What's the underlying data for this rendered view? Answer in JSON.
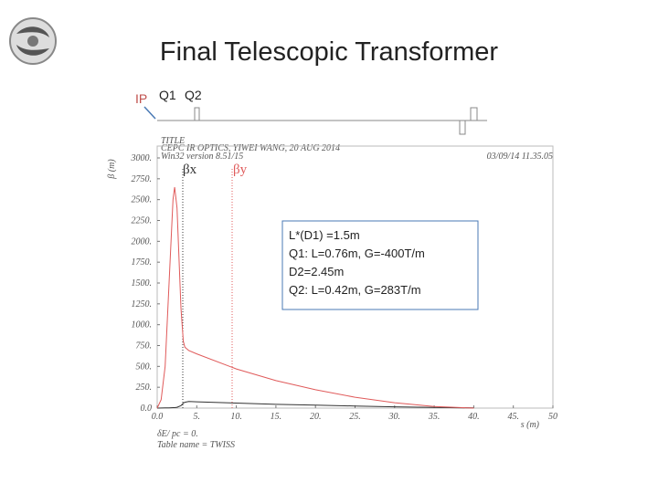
{
  "chart_data": {
    "type": "line",
    "title": "Final Telescopic Transformer",
    "beamline_labels": [
      "IP",
      "Q1",
      "Q2"
    ],
    "header": [
      "TITLE",
      "CEPC IR OPTICS, YIWEI WANG, 20 AUG 2014",
      "Win32 version 8.51/15",
      "03/09/14  11.35.05"
    ],
    "footer": [
      "δE/ pc = 0.",
      "Table name = TWISS"
    ],
    "x_label": "s (m)",
    "y_label": "β (m)",
    "annotation": [
      "L*(D1) =1.5m",
      "Q1: L=0.76m, G=-400T/m",
      "D2=2.45m",
      "Q2: L=0.42m, G=283T/m"
    ],
    "x": [
      0,
      0.5,
      1,
      1.5,
      2,
      2.2,
      2.5,
      3,
      3.3,
      3.5,
      4,
      5,
      10,
      15,
      20,
      25,
      30,
      35,
      40
    ],
    "series": [
      {
        "name": "βx",
        "color": "#333333",
        "values": [
          0,
          1,
          2,
          3,
          5,
          6,
          10,
          30,
          60,
          70,
          80,
          75,
          60,
          45,
          35,
          25,
          15,
          8,
          2
        ]
      },
      {
        "name": "βy",
        "color": "#e05a5a",
        "values": [
          0,
          100,
          500,
          1500,
          2500,
          2650,
          2400,
          1200,
          800,
          730,
          690,
          650,
          470,
          330,
          220,
          130,
          65,
          20,
          0
        ]
      }
    ],
    "xlim": [
      0,
      50
    ],
    "ylim": [
      0,
      3000
    ],
    "xticks": [
      {
        "value": 0,
        "label": "0.0"
      },
      {
        "value": 5,
        "label": "5."
      },
      {
        "value": 10,
        "label": "10."
      },
      {
        "value": 15,
        "label": "15."
      },
      {
        "value": 20,
        "label": "20."
      },
      {
        "value": 25,
        "label": "25."
      },
      {
        "value": 30,
        "label": "30."
      },
      {
        "value": 35,
        "label": "35."
      },
      {
        "value": 40,
        "label": "40."
      },
      {
        "value": 45,
        "label": "45."
      },
      50
    ],
    "yticks": [
      {
        "value": 0,
        "label": "0.0"
      },
      {
        "value": 250,
        "label": "250."
      },
      {
        "value": 500,
        "label": "500."
      },
      {
        "value": 750,
        "label": "750."
      },
      {
        "value": 1000,
        "label": "1000."
      },
      {
        "value": 1250,
        "label": "1250."
      },
      {
        "value": 1500,
        "label": "1500."
      },
      {
        "value": 1750,
        "label": "1750."
      },
      {
        "value": 2000,
        "label": "2000."
      },
      {
        "value": 2250,
        "label": "2250."
      },
      {
        "value": 2500,
        "label": "2500."
      },
      {
        "value": 2750,
        "label": "2750."
      },
      {
        "value": 3000,
        "label": "3000."
      }
    ],
    "grid": false
  }
}
